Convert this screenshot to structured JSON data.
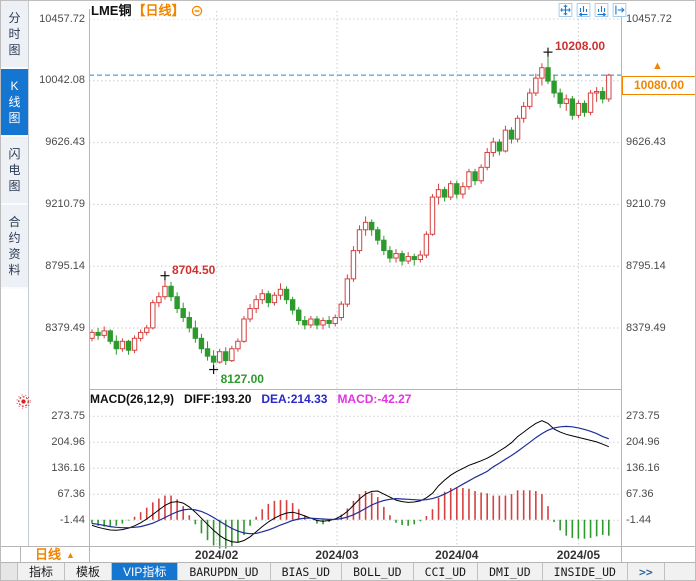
{
  "header": {
    "symbol": "LME铜",
    "period_tag": "【日线】"
  },
  "sidebar": {
    "items": [
      {
        "label": "分时图",
        "name": "time-chart",
        "active": false
      },
      {
        "label": "K线图",
        "name": "kline-chart",
        "active": true
      },
      {
        "label": "闪电图",
        "name": "flash-chart",
        "active": false
      },
      {
        "label": "合约资料",
        "name": "contract-info",
        "active": false
      }
    ]
  },
  "toolbar_icons": [
    "crosshair-icon",
    "compress-axis-icon",
    "expand-axis-icon",
    "detach-window-icon"
  ],
  "indicator_header": {
    "title": "MACD(26,12,9)",
    "diff": "DIFF:193.20",
    "dea": "DEA:214.33",
    "macd": "MACD:-42.27"
  },
  "bottom": {
    "period_label": "日线",
    "period_arrow": "▲",
    "last_price_arrow": "▲"
  },
  "tabs": [
    {
      "label": "指标",
      "name": "indicator",
      "active": false,
      "mono": false
    },
    {
      "label": "模板",
      "name": "template",
      "active": false,
      "mono": false
    },
    {
      "label": "VIP指标",
      "name": "vip-indicator",
      "active": true,
      "mono": false
    },
    {
      "label": "BARUPDN_UD",
      "name": "barupdn-ud",
      "active": false,
      "mono": true
    },
    {
      "label": "BIAS_UD",
      "name": "bias-ud",
      "active": false,
      "mono": true
    },
    {
      "label": "BOLL_UD",
      "name": "boll-ud",
      "active": false,
      "mono": true
    },
    {
      "label": "CCI_UD",
      "name": "cci-ud",
      "active": false,
      "mono": true
    },
    {
      "label": "DMI_UD",
      "name": "dmi-ud",
      "active": false,
      "mono": true
    },
    {
      "label": "INSIDE_UD",
      "name": "inside-ud",
      "active": false,
      "mono": true
    },
    {
      "label": ">>",
      "name": "more",
      "active": false,
      "mono": true
    }
  ],
  "colors": {
    "up": "#d54040",
    "down": "#2c9a2c",
    "diff_line": "#000000",
    "dea_line": "#1f2d9b",
    "last_price_line": "#1b86e0",
    "accent_orange": "#f28500",
    "grid": "#cdcdcd",
    "axis_text": "#4a4a4a",
    "active_tab_bg": "#1576d2",
    "annotation_high": "#d03030",
    "annotation_low": "#2c9a2c"
  },
  "chart_data": {
    "type": "candlestick+macd",
    "title": "LME铜【日线】",
    "legend_position": "top-left",
    "grid": "dotted",
    "y_axis_main": [
      10457.72,
      10042.08,
      9626.43,
      9210.79,
      8795.14,
      8379.49
    ],
    "y_axis_macd": [
      273.75,
      204.96,
      136.16,
      67.36,
      -1.44
    ],
    "x_axis": {
      "labels": [
        "2024/02",
        "2024/03",
        "2024/04",
        "2024/05"
      ],
      "indices": [
        20.5,
        40.3,
        60.0,
        80.0
      ]
    },
    "last_price": {
      "value": 10080.0,
      "label": "10080.00"
    },
    "annotations": [
      {
        "label": "8704.50",
        "index": 12,
        "price": 8704.5,
        "type": "high"
      },
      {
        "label": "8127.00",
        "index": 20,
        "price": 8127.0,
        "type": "low"
      },
      {
        "label": "10208.00",
        "index": 75,
        "price": 10208.0,
        "type": "high"
      }
    ],
    "candles": [
      [
        8310,
        8370,
        8290,
        8350
      ],
      [
        8350,
        8380,
        8300,
        8330
      ],
      [
        8330,
        8390,
        8310,
        8360
      ],
      [
        8360,
        8370,
        8270,
        8290
      ],
      [
        8290,
        8330,
        8200,
        8240
      ],
      [
        8240,
        8310,
        8220,
        8290
      ],
      [
        8290,
        8300,
        8200,
        8230
      ],
      [
        8230,
        8330,
        8210,
        8310
      ],
      [
        8310,
        8370,
        8290,
        8350
      ],
      [
        8350,
        8400,
        8330,
        8380
      ],
      [
        8380,
        8570,
        8370,
        8550
      ],
      [
        8550,
        8620,
        8520,
        8590
      ],
      [
        8590,
        8704.5,
        8570,
        8660
      ],
      [
        8660,
        8690,
        8560,
        8590
      ],
      [
        8590,
        8620,
        8480,
        8510
      ],
      [
        8510,
        8550,
        8420,
        8450
      ],
      [
        8450,
        8490,
        8350,
        8380
      ],
      [
        8380,
        8430,
        8280,
        8310
      ],
      [
        8310,
        8340,
        8210,
        8240
      ],
      [
        8240,
        8290,
        8160,
        8190
      ],
      [
        8190,
        8230,
        8127,
        8150
      ],
      [
        8150,
        8240,
        8140,
        8220
      ],
      [
        8220,
        8250,
        8130,
        8160
      ],
      [
        8160,
        8260,
        8150,
        8240
      ],
      [
        8240,
        8310,
        8220,
        8290
      ],
      [
        8290,
        8460,
        8280,
        8440
      ],
      [
        8440,
        8540,
        8420,
        8510
      ],
      [
        8510,
        8600,
        8480,
        8570
      ],
      [
        8570,
        8640,
        8540,
        8610
      ],
      [
        8610,
        8630,
        8520,
        8550
      ],
      [
        8550,
        8620,
        8530,
        8600
      ],
      [
        8600,
        8680,
        8570,
        8640
      ],
      [
        8640,
        8660,
        8540,
        8570
      ],
      [
        8570,
        8590,
        8470,
        8500
      ],
      [
        8500,
        8520,
        8400,
        8430
      ],
      [
        8430,
        8460,
        8370,
        8400
      ],
      [
        8400,
        8460,
        8380,
        8440
      ],
      [
        8440,
        8460,
        8370,
        8400
      ],
      [
        8400,
        8450,
        8370,
        8430
      ],
      [
        8430,
        8460,
        8380,
        8410
      ],
      [
        8410,
        8470,
        8390,
        8450
      ],
      [
        8450,
        8560,
        8430,
        8540
      ],
      [
        8540,
        8740,
        8520,
        8710
      ],
      [
        8710,
        8930,
        8690,
        8900
      ],
      [
        8900,
        9070,
        8880,
        9040
      ],
      [
        9040,
        9130,
        9000,
        9090
      ],
      [
        9090,
        9110,
        9000,
        9040
      ],
      [
        9040,
        9060,
        8940,
        8970
      ],
      [
        8970,
        9000,
        8870,
        8900
      ],
      [
        8900,
        8930,
        8820,
        8850
      ],
      [
        8850,
        8910,
        8820,
        8880
      ],
      [
        8880,
        8900,
        8800,
        8830
      ],
      [
        8830,
        8890,
        8810,
        8860
      ],
      [
        8860,
        8880,
        8800,
        8840
      ],
      [
        8840,
        8900,
        8820,
        8870
      ],
      [
        8870,
        9030,
        8850,
        9010
      ],
      [
        9010,
        9280,
        9000,
        9260
      ],
      [
        9260,
        9350,
        9210,
        9310
      ],
      [
        9310,
        9330,
        9230,
        9260
      ],
      [
        9260,
        9370,
        9240,
        9350
      ],
      [
        9350,
        9370,
        9250,
        9280
      ],
      [
        9280,
        9360,
        9250,
        9330
      ],
      [
        9330,
        9450,
        9310,
        9430
      ],
      [
        9430,
        9450,
        9340,
        9370
      ],
      [
        9370,
        9480,
        9350,
        9460
      ],
      [
        9460,
        9590,
        9440,
        9560
      ],
      [
        9560,
        9660,
        9530,
        9630
      ],
      [
        9630,
        9650,
        9540,
        9570
      ],
      [
        9570,
        9740,
        9560,
        9710
      ],
      [
        9710,
        9730,
        9620,
        9650
      ],
      [
        9650,
        9810,
        9630,
        9790
      ],
      [
        9790,
        9900,
        9760,
        9870
      ],
      [
        9870,
        9990,
        9850,
        9960
      ],
      [
        9960,
        10090,
        9940,
        10060
      ],
      [
        10060,
        10160,
        10010,
        10130
      ],
      [
        10130,
        10208,
        10020,
        10040
      ],
      [
        10040,
        10080,
        9930,
        9960
      ],
      [
        9960,
        9990,
        9860,
        9890
      ],
      [
        9890,
        9950,
        9840,
        9920
      ],
      [
        9920,
        9940,
        9780,
        9810
      ],
      [
        9810,
        9910,
        9790,
        9890
      ],
      [
        9890,
        9910,
        9800,
        9830
      ],
      [
        9830,
        9980,
        9810,
        9960
      ],
      [
        9960,
        10000,
        9900,
        9970
      ],
      [
        9970,
        10000,
        9890,
        9920
      ],
      [
        9920,
        10090,
        9900,
        10080
      ]
    ],
    "macd": {
      "params": "26,12,9",
      "diff": [
        -15,
        -20,
        -24,
        -27,
        -28,
        -26,
        -22,
        -16,
        -8,
        2,
        14,
        26,
        38,
        46,
        48,
        44,
        34,
        20,
        4,
        -12,
        -28,
        -42,
        -52,
        -58,
        -60,
        -55,
        -45,
        -32,
        -18,
        -6,
        4,
        12,
        18,
        20,
        16,
        10,
        4,
        -2,
        -4,
        -2,
        2,
        10,
        22,
        38,
        55,
        68,
        75,
        76,
        68,
        60,
        52,
        48,
        46,
        47,
        50,
        58,
        70,
        90,
        105,
        118,
        128,
        136,
        144,
        150,
        156,
        163,
        172,
        182,
        192,
        204,
        220,
        232,
        244,
        255,
        262,
        255,
        240,
        232,
        226,
        222,
        218,
        214,
        210,
        206,
        200,
        193.2
      ],
      "dea": [
        -10,
        -12,
        -15,
        -18,
        -20,
        -21,
        -21,
        -20,
        -18,
        -14,
        -9,
        -2,
        6,
        14,
        21,
        26,
        28,
        26,
        22,
        15,
        6,
        -4,
        -14,
        -23,
        -30,
        -35,
        -37,
        -36,
        -32,
        -27,
        -21,
        -14,
        -8,
        -2,
        2,
        4,
        4,
        3,
        2,
        1,
        1,
        3,
        7,
        13,
        21,
        30,
        39,
        46,
        51,
        54,
        56,
        55,
        54,
        53,
        52,
        53,
        56,
        61,
        68,
        76,
        85,
        94,
        103,
        112,
        120,
        128,
        140,
        150,
        160,
        170,
        181,
        193,
        205,
        217,
        228,
        237,
        243,
        246,
        247,
        246,
        243,
        239,
        234,
        228,
        220,
        214.33
      ]
    }
  }
}
